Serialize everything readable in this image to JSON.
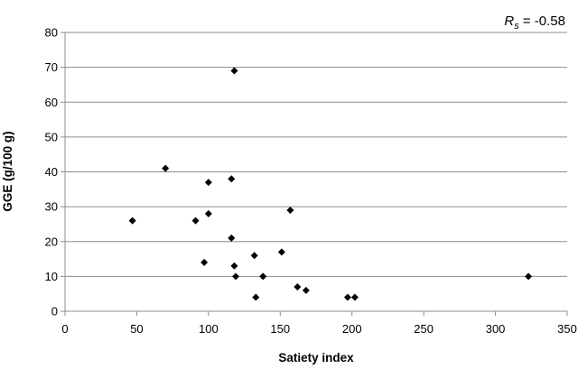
{
  "chart_data": {
    "type": "scatter",
    "title": "",
    "xlabel": "Satiety index",
    "ylabel": "GGE (g/100 g)",
    "xlim": [
      0,
      350
    ],
    "ylim": [
      0,
      80
    ],
    "x_ticks": [
      0,
      50,
      100,
      150,
      200,
      250,
      300,
      350
    ],
    "y_ticks": [
      0,
      10,
      20,
      30,
      40,
      50,
      60,
      70,
      80
    ],
    "grid": {
      "horizontal": true,
      "vertical": false
    },
    "legend": "none",
    "marker": {
      "shape": "diamond",
      "color": "#000000"
    },
    "annotation": {
      "symbol": "R",
      "subscript": "s",
      "text": " = -0.58",
      "position": "top-right"
    },
    "series": [
      {
        "points": [
          {
            "x": 47,
            "y": 26
          },
          {
            "x": 70,
            "y": 41
          },
          {
            "x": 91,
            "y": 26
          },
          {
            "x": 97,
            "y": 14
          },
          {
            "x": 100,
            "y": 37
          },
          {
            "x": 100,
            "y": 28
          },
          {
            "x": 116,
            "y": 38
          },
          {
            "x": 116,
            "y": 21
          },
          {
            "x": 118,
            "y": 69
          },
          {
            "x": 118,
            "y": 13
          },
          {
            "x": 119,
            "y": 10
          },
          {
            "x": 132,
            "y": 16
          },
          {
            "x": 133,
            "y": 4
          },
          {
            "x": 138,
            "y": 10
          },
          {
            "x": 151,
            "y": 17
          },
          {
            "x": 157,
            "y": 29
          },
          {
            "x": 162,
            "y": 7
          },
          {
            "x": 168,
            "y": 6
          },
          {
            "x": 197,
            "y": 4
          },
          {
            "x": 202,
            "y": 4
          },
          {
            "x": 323,
            "y": 10
          }
        ]
      }
    ]
  }
}
